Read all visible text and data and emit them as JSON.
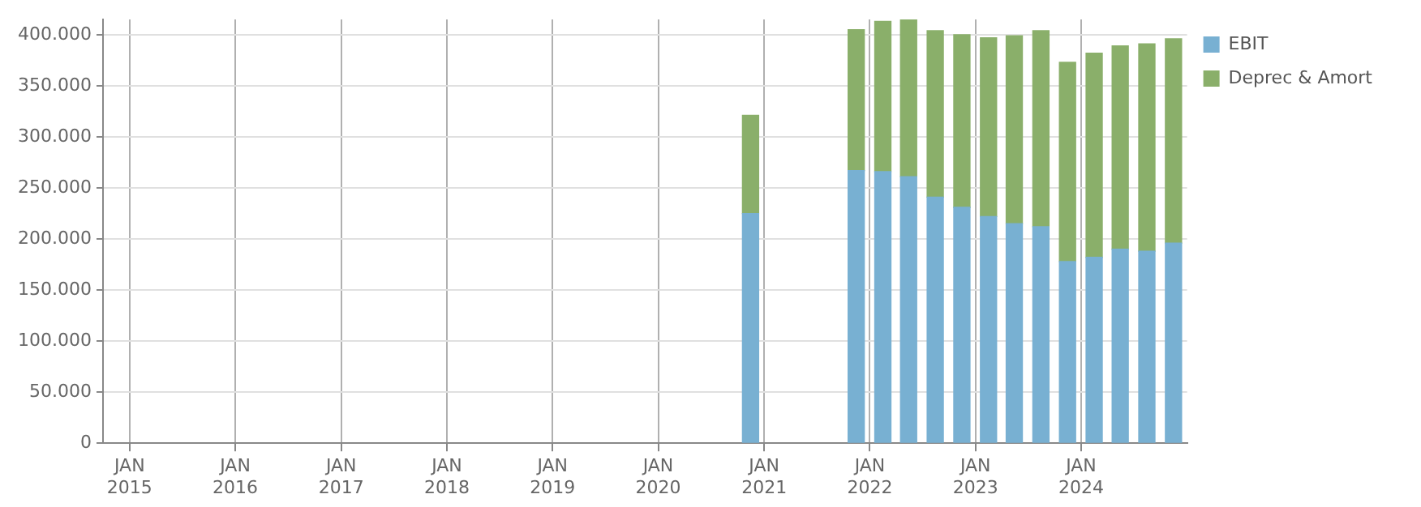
{
  "chart_data": {
    "type": "bar",
    "stacked": true,
    "x": [
      "2020-11-15",
      "2021-11-15",
      "2022-02-15",
      "2022-05-15",
      "2022-08-15",
      "2022-11-15",
      "2023-02-15",
      "2023-05-15",
      "2023-08-15",
      "2023-11-15",
      "2024-02-15",
      "2024-05-15",
      "2024-08-15",
      "2024-11-15"
    ],
    "series": [
      {
        "name": "EBIT",
        "color": "#78b0d2",
        "values": [
          225000,
          267000,
          266000,
          261000,
          241000,
          231000,
          222000,
          215000,
          212000,
          178000,
          182000,
          190000,
          188000,
          196000
        ]
      },
      {
        "name": "Deprec & Amort",
        "color": "#8aaf6a",
        "values": [
          96000,
          138000,
          147000,
          154000,
          163000,
          169000,
          175000,
          184000,
          192000,
          195000,
          200000,
          199000,
          203000,
          200000
        ]
      }
    ],
    "xlim": [
      "2014-10-01",
      "2025-01-01"
    ],
    "xticks": [
      {
        "value": "2015-01-01",
        "label": "JAN\n2015"
      },
      {
        "value": "2016-01-01",
        "label": "JAN\n2016"
      },
      {
        "value": "2017-01-01",
        "label": "JAN\n2017"
      },
      {
        "value": "2018-01-01",
        "label": "JAN\n2018"
      },
      {
        "value": "2019-01-01",
        "label": "JAN\n2019"
      },
      {
        "value": "2020-01-01",
        "label": "JAN\n2020"
      },
      {
        "value": "2021-01-01",
        "label": "JAN\n2021"
      },
      {
        "value": "2022-01-01",
        "label": "JAN\n2022"
      },
      {
        "value": "2023-01-01",
        "label": "JAN\n2023"
      },
      {
        "value": "2024-01-01",
        "label": "JAN\n2024"
      }
    ],
    "ylim": [
      0,
      415000
    ],
    "yticks": [
      {
        "value": 0,
        "label": "0"
      },
      {
        "value": 50000,
        "label": "50.000"
      },
      {
        "value": 100000,
        "label": "100.000"
      },
      {
        "value": 150000,
        "label": "150.000"
      },
      {
        "value": 200000,
        "label": "200.000"
      },
      {
        "value": 250000,
        "label": "250.000"
      },
      {
        "value": 300000,
        "label": "300.000"
      },
      {
        "value": 350000,
        "label": "350.000"
      },
      {
        "value": 400000,
        "label": "400.000"
      }
    ],
    "grid": true,
    "legend": "top right"
  }
}
